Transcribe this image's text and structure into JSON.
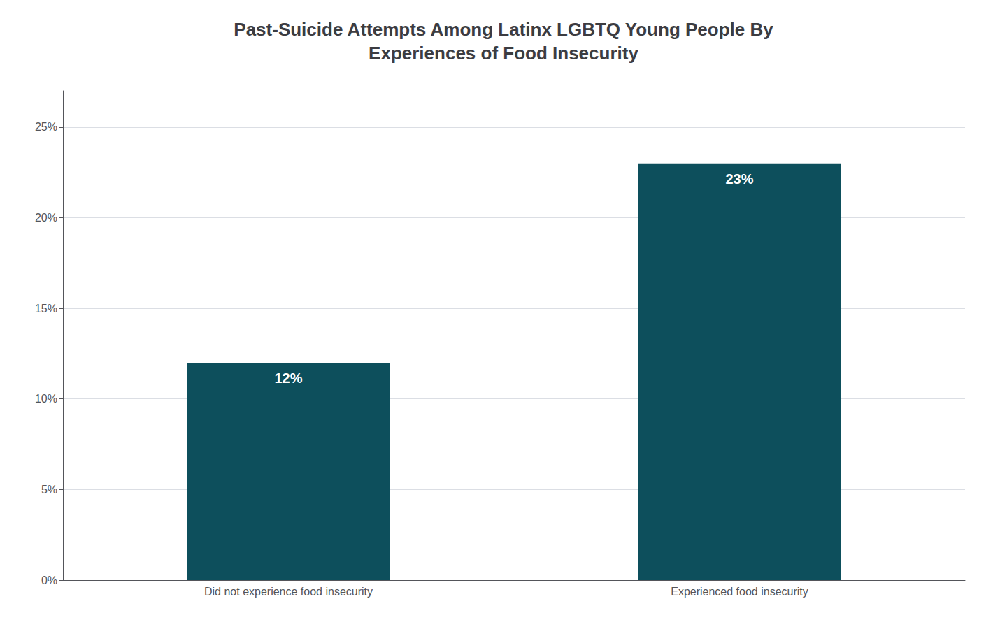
{
  "chart_data": {
    "type": "bar",
    "title": "Past-Suicide Attempts Among Latinx LGBTQ Young People By\nExperiences of Food Insecurity",
    "categories": [
      "Did not experience food insecurity",
      "Experienced food insecurity"
    ],
    "values": [
      12,
      23
    ],
    "value_labels": [
      "12%",
      "23%"
    ],
    "data_labels": true,
    "color": "#0d4f5c",
    "ylim": [
      0,
      27
    ],
    "yticks": [
      {
        "value": 0,
        "label": "0%"
      },
      {
        "value": 5,
        "label": "5%"
      },
      {
        "value": 10,
        "label": "10%"
      },
      {
        "value": 15,
        "label": "15%"
      },
      {
        "value": 20,
        "label": "20%"
      },
      {
        "value": 25,
        "label": "25%"
      }
    ],
    "grid": true
  }
}
